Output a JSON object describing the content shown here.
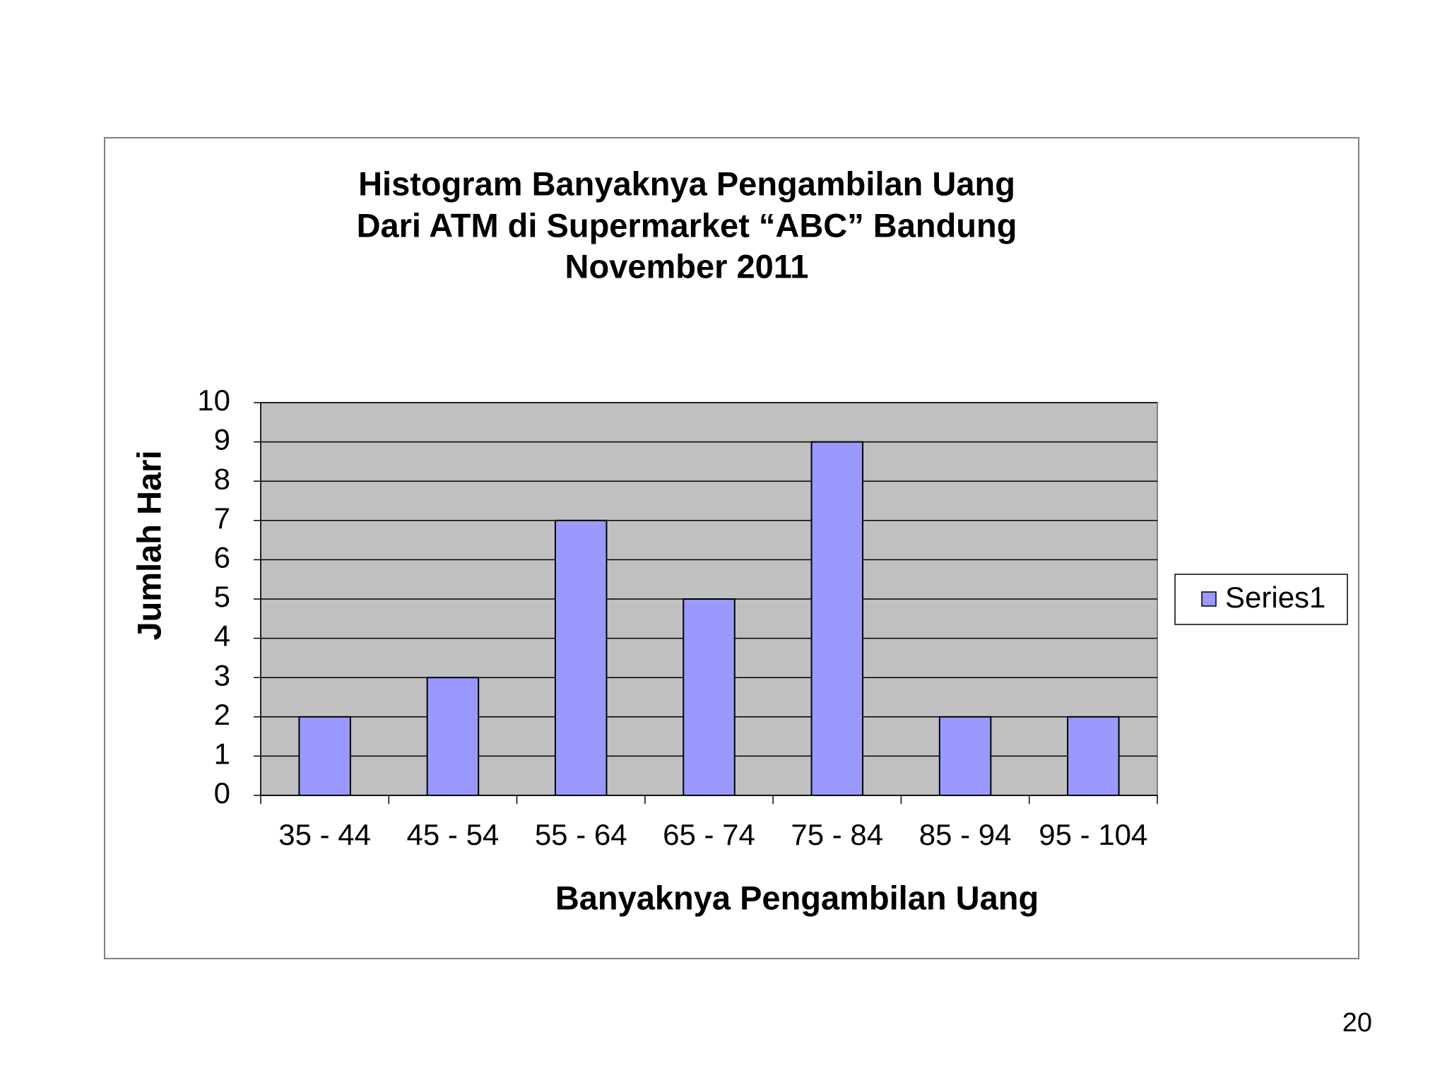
{
  "chart_data": {
    "type": "bar",
    "title": [
      "Histogram  Banyaknya  Pengambilan  Uang",
      "Dari ATM di Supermarket  “ABC”   Bandung",
      "November 2011"
    ],
    "x_label": "Banyaknya   Pengambilan   Uang",
    "y_label": "Jumlah    Hari",
    "categories": [
      "35 - 44",
      "45 - 54",
      "55 - 64",
      "65 - 74",
      "75 - 84",
      "85 - 94",
      "95 - 104"
    ],
    "series": [
      {
        "name": "Series1",
        "color": "#9999ff",
        "values": [
          2,
          3,
          7,
          5,
          9,
          2,
          2
        ]
      }
    ],
    "ylim": [
      0,
      10
    ],
    "yticks": [
      0,
      1,
      2,
      3,
      4,
      5,
      6,
      7,
      8,
      9,
      10
    ],
    "grid": true,
    "legend": "right"
  },
  "slide_number": "20"
}
